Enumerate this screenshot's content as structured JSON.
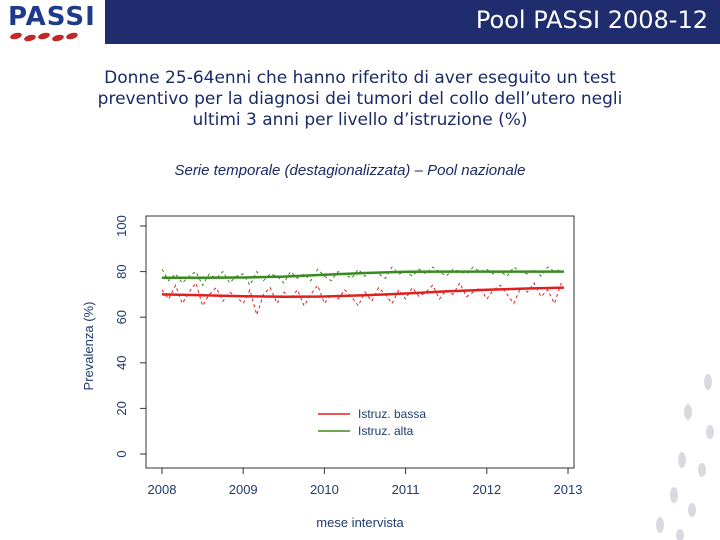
{
  "header": {
    "logo_text": "PASSI",
    "title": "Pool PASSI 2008-12"
  },
  "main_title": [
    "Donne 25-64enni che hanno riferito di aver eseguito un test",
    "preventivo per la diagnosi dei tumori del collo dell’utero negli",
    "ultimi 3 anni per livello d’istruzione (%)"
  ],
  "subtitle": "Serie temporale (destagionalizzata) – Pool nazionale",
  "colors": {
    "header_bar": "#1f2d6e",
    "bassa": "#e02020",
    "alta": "#3a8a1f"
  },
  "decor": {
    "footprints_icon": "footprints-icon"
  },
  "chart_data": {
    "type": "line",
    "xlabel": "mese intervista",
    "ylabel": "Prevalenza (%)",
    "xlim": [
      2008,
      2013
    ],
    "ylim": [
      0,
      100
    ],
    "xticks": [
      "2008",
      "2009",
      "2010",
      "2011",
      "2012",
      "2013"
    ],
    "yticks": [
      "0",
      "20",
      "40",
      "60",
      "80",
      "100"
    ],
    "legend_position": "bottom-right",
    "series": [
      {
        "name": "Istruz. bassa",
        "color": "#e02020",
        "trend_x": [
          2008.0,
          2008.5,
          2009.0,
          2009.5,
          2010.0,
          2010.5,
          2011.0,
          2011.5,
          2012.0,
          2012.5,
          2012.95
        ],
        "trend_y": [
          70.0,
          69.6,
          69.2,
          69.0,
          69.1,
          69.6,
          70.4,
          71.3,
          72.0,
          72.6,
          73.0
        ],
        "monthly_x": [
          2008.0,
          2008.083,
          2008.167,
          2008.25,
          2008.333,
          2008.417,
          2008.5,
          2008.583,
          2008.667,
          2008.75,
          2008.833,
          2008.917,
          2009.0,
          2009.083,
          2009.167,
          2009.25,
          2009.333,
          2009.417,
          2009.5,
          2009.583,
          2009.667,
          2009.75,
          2009.833,
          2009.917,
          2010.0,
          2010.083,
          2010.167,
          2010.25,
          2010.333,
          2010.417,
          2010.5,
          2010.583,
          2010.667,
          2010.75,
          2010.833,
          2010.917,
          2011.0,
          2011.083,
          2011.167,
          2011.25,
          2011.333,
          2011.417,
          2011.5,
          2011.583,
          2011.667,
          2011.75,
          2011.833,
          2011.917,
          2012.0,
          2012.083,
          2012.167,
          2012.25,
          2012.333,
          2012.417,
          2012.5,
          2012.583,
          2012.667,
          2012.75,
          2012.833,
          2012.917
        ],
        "monthly_y": [
          72,
          68,
          74,
          66,
          71,
          75,
          65,
          70,
          73,
          67,
          71,
          69,
          66,
          72,
          61,
          70,
          73,
          66,
          71,
          68,
          72,
          65,
          70,
          74,
          66,
          70,
          68,
          72,
          69,
          65,
          71,
          67,
          73,
          70,
          66,
          72,
          68,
          73,
          69,
          71,
          74,
          68,
          72,
          70,
          75,
          69,
          71,
          73,
          68,
          72,
          74,
          70,
          66,
          73,
          71,
          75,
          69,
          72,
          66,
          75
        ]
      },
      {
        "name": "Istruz. alta",
        "color": "#3a8a1f",
        "trend_x": [
          2008.0,
          2008.5,
          2009.0,
          2009.5,
          2010.0,
          2010.5,
          2011.0,
          2011.5,
          2012.0,
          2012.5,
          2012.95
        ],
        "trend_y": [
          77.3,
          77.3,
          77.4,
          77.8,
          78.6,
          79.4,
          79.9,
          80.0,
          80.0,
          80.0,
          80.0
        ],
        "monthly_x": [
          2008.0,
          2008.083,
          2008.167,
          2008.25,
          2008.333,
          2008.417,
          2008.5,
          2008.583,
          2008.667,
          2008.75,
          2008.833,
          2008.917,
          2009.0,
          2009.083,
          2009.167,
          2009.25,
          2009.333,
          2009.417,
          2009.5,
          2009.583,
          2009.667,
          2009.75,
          2009.833,
          2009.917,
          2010.0,
          2010.083,
          2010.167,
          2010.25,
          2010.333,
          2010.417,
          2010.5,
          2010.583,
          2010.667,
          2010.75,
          2010.833,
          2010.917,
          2011.0,
          2011.083,
          2011.167,
          2011.25,
          2011.333,
          2011.417,
          2011.5,
          2011.583,
          2011.667,
          2011.75,
          2011.833,
          2011.917,
          2012.0,
          2012.083,
          2012.167,
          2012.25,
          2012.333,
          2012.417,
          2012.5,
          2012.583,
          2012.667,
          2012.75,
          2012.833,
          2012.917
        ],
        "monthly_y": [
          81,
          76,
          79,
          75,
          78,
          80,
          74,
          79,
          77,
          80,
          75,
          78,
          79,
          74,
          80,
          76,
          79,
          78,
          75,
          80,
          77,
          79,
          76,
          81,
          78,
          76,
          80,
          79,
          77,
          81,
          78,
          80,
          79,
          77,
          82,
          79,
          80,
          78,
          81,
          79,
          82,
          80,
          78,
          81,
          80,
          79,
          82,
          80,
          81,
          79,
          80,
          78,
          82,
          80,
          79,
          81,
          78,
          82,
          80,
          81
        ]
      }
    ]
  }
}
